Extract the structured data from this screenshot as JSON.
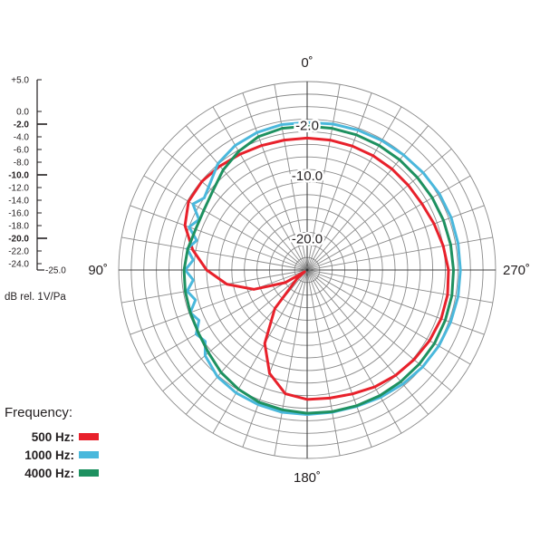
{
  "chart_data": {
    "type": "polar",
    "angle_labels": [
      {
        "angle": 0,
        "text": "0˚"
      },
      {
        "angle": 90,
        "text": "90˚"
      },
      {
        "angle": 180,
        "text": "180˚"
      },
      {
        "angle": 270,
        "text": "270˚"
      }
    ],
    "ring_labels": [
      {
        "db": -2,
        "text": "-2.0"
      },
      {
        "db": -10,
        "text": "-10.0"
      },
      {
        "db": -20,
        "text": "-20.0"
      }
    ],
    "r_range_db": [
      -25,
      5
    ],
    "grid": {
      "ring_step_db": 2,
      "bold_rings_db": [
        -2,
        -10,
        -20
      ],
      "spoke_step_deg": 10
    },
    "scale": {
      "ticks": [
        {
          "db": 5,
          "text": "+5.0",
          "major": false
        },
        {
          "db": 0,
          "text": "0.0",
          "major": false
        },
        {
          "db": -2,
          "text": "-2.0",
          "major": true
        },
        {
          "db": -4,
          "text": "-4.0",
          "major": false
        },
        {
          "db": -6,
          "text": "-6.0",
          "major": false
        },
        {
          "db": -8,
          "text": "-8.0",
          "major": false
        },
        {
          "db": -10,
          "text": "-10.0",
          "major": true
        },
        {
          "db": -12,
          "text": "-12.0",
          "major": false
        },
        {
          "db": -14,
          "text": "-14.0",
          "major": false
        },
        {
          "db": -16,
          "text": "-16.0",
          "major": false
        },
        {
          "db": -18,
          "text": "-18.0",
          "major": false
        },
        {
          "db": -20,
          "text": "-20.0",
          "major": true
        },
        {
          "db": -22,
          "text": "-22.0",
          "major": false
        },
        {
          "db": -24,
          "text": "-24.0",
          "major": false
        },
        {
          "db": -25,
          "text": "-25.0",
          "major": false
        }
      ],
      "unit": "dB rel. 1V/Pa"
    },
    "legend": {
      "title": "Frequency:",
      "placement": "bottom-left"
    },
    "series": [
      {
        "name": "500 Hz:",
        "color": "#e8212b",
        "points": [
          [
            0,
            -4
          ],
          [
            10,
            -4
          ],
          [
            20,
            -3.9
          ],
          [
            30,
            -3.7
          ],
          [
            40,
            -3.4
          ],
          [
            50,
            -3.1
          ],
          [
            60,
            -3.2
          ],
          [
            70,
            -4.3
          ],
          [
            80,
            -6.5
          ],
          [
            90,
            -9
          ],
          [
            100,
            -12
          ],
          [
            110,
            -16
          ],
          [
            120,
            -21
          ],
          [
            125,
            -24.5
          ],
          [
            130,
            -23
          ],
          [
            140,
            -17
          ],
          [
            150,
            -11.5
          ],
          [
            160,
            -7.5
          ],
          [
            170,
            -5
          ],
          [
            180,
            -4.4
          ],
          [
            190,
            -4.3
          ],
          [
            200,
            -4
          ],
          [
            210,
            -3.5
          ],
          [
            220,
            -3.1
          ],
          [
            230,
            -2.8
          ],
          [
            240,
            -2.5
          ],
          [
            250,
            -2.3
          ],
          [
            260,
            -2.3
          ],
          [
            270,
            -2.5
          ],
          [
            280,
            -3
          ],
          [
            290,
            -3.5
          ],
          [
            300,
            -3.9
          ],
          [
            310,
            -4
          ],
          [
            320,
            -4
          ],
          [
            330,
            -4
          ],
          [
            340,
            -4
          ],
          [
            350,
            -4
          ]
        ]
      },
      {
        "name": "1000 Hz:",
        "color": "#4ab8dc",
        "points": [
          [
            0,
            -1.5
          ],
          [
            10,
            -1.5
          ],
          [
            20,
            -1.7
          ],
          [
            30,
            -2.1
          ],
          [
            40,
            -2.9
          ],
          [
            50,
            -4.5
          ],
          [
            55,
            -5
          ],
          [
            60,
            -4
          ],
          [
            65,
            -6
          ],
          [
            70,
            -5
          ],
          [
            75,
            -6.8
          ],
          [
            80,
            -5.6
          ],
          [
            85,
            -6.8
          ],
          [
            90,
            -5.6
          ],
          [
            95,
            -6.8
          ],
          [
            100,
            -5.6
          ],
          [
            105,
            -6.6
          ],
          [
            110,
            -5.2
          ],
          [
            115,
            -6
          ],
          [
            120,
            -4.6
          ],
          [
            125,
            -5.2
          ],
          [
            130,
            -3.8
          ],
          [
            140,
            -2.8
          ],
          [
            150,
            -2.4
          ],
          [
            160,
            -2.2
          ],
          [
            170,
            -2
          ],
          [
            180,
            -2
          ],
          [
            190,
            -2
          ],
          [
            200,
            -1.9
          ],
          [
            210,
            -1.6
          ],
          [
            220,
            -1.3
          ],
          [
            230,
            -1
          ],
          [
            240,
            -0.8
          ],
          [
            250,
            -0.7
          ],
          [
            260,
            -0.6
          ],
          [
            270,
            -0.6
          ],
          [
            280,
            -0.6
          ],
          [
            290,
            -0.6
          ],
          [
            300,
            -0.7
          ],
          [
            310,
            -0.9
          ],
          [
            320,
            -1.1
          ],
          [
            330,
            -1.2
          ],
          [
            340,
            -1.3
          ],
          [
            350,
            -1.4
          ]
        ]
      },
      {
        "name": "4000 Hz:",
        "color": "#1e9160",
        "points": [
          [
            0,
            -2.1
          ],
          [
            10,
            -2.1
          ],
          [
            20,
            -2.4
          ],
          [
            30,
            -3.2
          ],
          [
            40,
            -4.2
          ],
          [
            50,
            -5.4
          ],
          [
            60,
            -6
          ],
          [
            70,
            -6.1
          ],
          [
            80,
            -5.7
          ],
          [
            90,
            -5.4
          ],
          [
            100,
            -5.3
          ],
          [
            110,
            -5.2
          ],
          [
            120,
            -5
          ],
          [
            130,
            -4.5
          ],
          [
            140,
            -3.7
          ],
          [
            150,
            -3.1
          ],
          [
            160,
            -2.6
          ],
          [
            170,
            -2.4
          ],
          [
            180,
            -2.2
          ],
          [
            190,
            -2.1
          ],
          [
            200,
            -2
          ],
          [
            210,
            -1.9
          ],
          [
            220,
            -1.8
          ],
          [
            230,
            -1.7
          ],
          [
            240,
            -1.6
          ],
          [
            250,
            -1.6
          ],
          [
            260,
            -1.6
          ],
          [
            270,
            -1.7
          ],
          [
            280,
            -1.8
          ],
          [
            290,
            -1.9
          ],
          [
            300,
            -2
          ],
          [
            310,
            -2.1
          ],
          [
            320,
            -2.1
          ],
          [
            330,
            -2.1
          ],
          [
            340,
            -2.1
          ],
          [
            350,
            -2.1
          ]
        ]
      }
    ]
  }
}
